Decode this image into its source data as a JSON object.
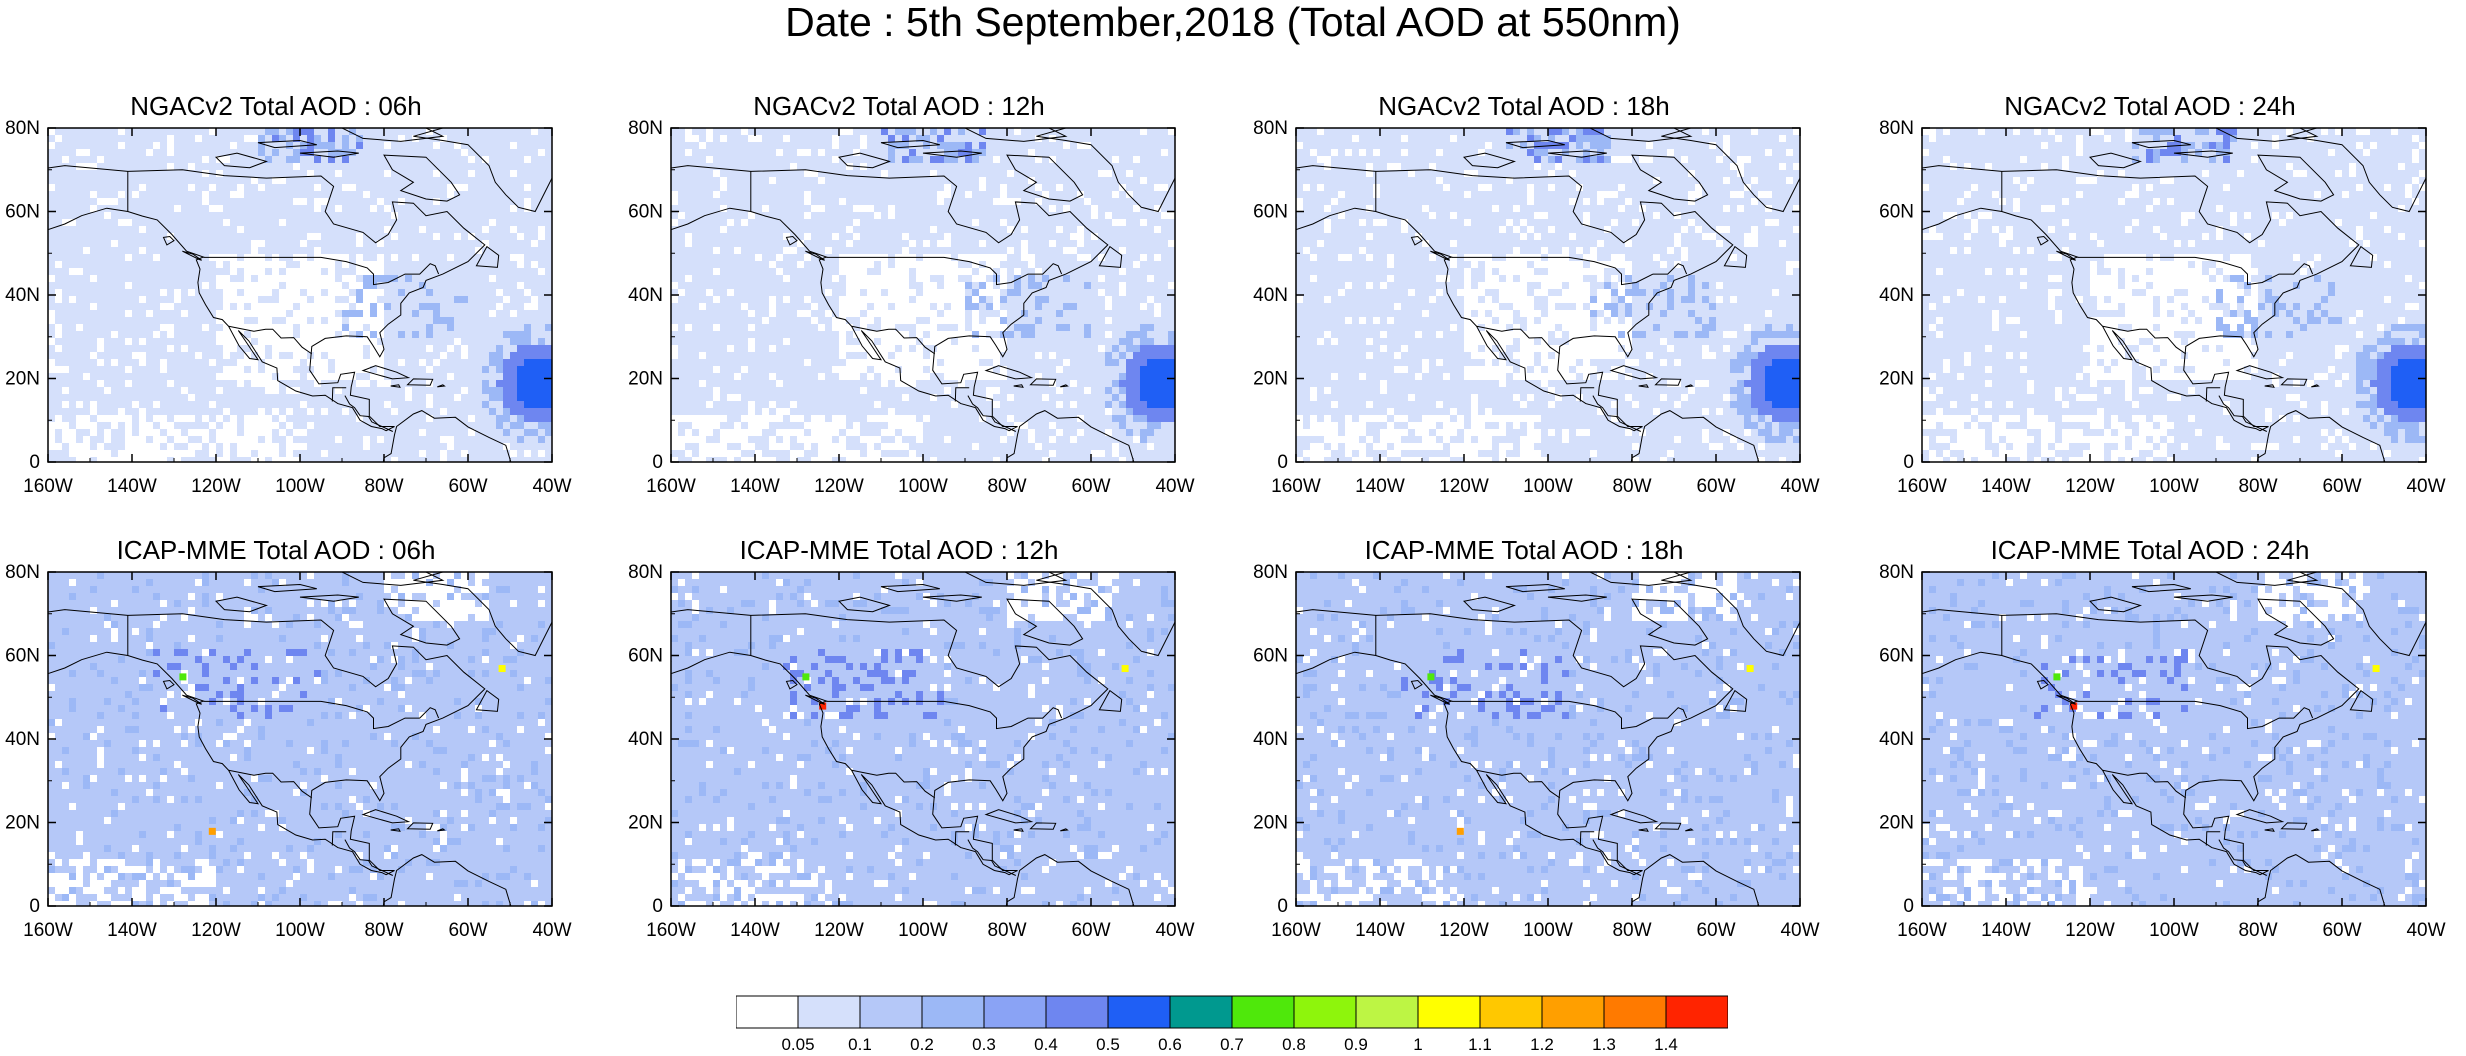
{
  "figure": {
    "title": "Date : 5th September,2018 (Total AOD at 550nm)"
  },
  "axes": {
    "lat_labels": [
      "80N",
      "60N",
      "40N",
      "20N",
      "0"
    ],
    "lon_labels": [
      "160W",
      "140W",
      "120W",
      "100W",
      "80W",
      "60W",
      "40W"
    ],
    "lon_range": [
      -160,
      -40
    ],
    "lat_range": [
      0,
      80
    ]
  },
  "panels": [
    {
      "title": "NGACv2 Total AOD : 06h",
      "model": "NGACv2",
      "hour": "06h"
    },
    {
      "title": "NGACv2 Total AOD : 12h",
      "model": "NGACv2",
      "hour": "12h"
    },
    {
      "title": "NGACv2 Total AOD : 18h",
      "model": "NGACv2",
      "hour": "18h"
    },
    {
      "title": "NGACv2 Total AOD : 24h",
      "model": "NGACv2",
      "hour": "24h"
    },
    {
      "title": "ICAP-MME Total AOD : 06h",
      "model": "ICAP-MME",
      "hour": "06h"
    },
    {
      "title": "ICAP-MME Total AOD : 12h",
      "model": "ICAP-MME",
      "hour": "12h"
    },
    {
      "title": "ICAP-MME Total AOD : 18h",
      "model": "ICAP-MME",
      "hour": "18h"
    },
    {
      "title": "ICAP-MME Total AOD : 24h",
      "model": "ICAP-MME",
      "hour": "24h"
    }
  ],
  "colorbar": {
    "colors": [
      "#ffffff",
      "#d5e0fb",
      "#b5c8f8",
      "#9cb8f6",
      "#8aa3f5",
      "#6e86f0",
      "#1f5ff5",
      "#00998f",
      "#4fe80b",
      "#8ef50c",
      "#bdf544",
      "#ffff00",
      "#ffc800",
      "#ff9f00",
      "#ff7a00",
      "#ff2400"
    ],
    "labels": [
      "0.05",
      "0.1",
      "0.2",
      "0.3",
      "0.4",
      "0.5",
      "0.6",
      "0.7",
      "0.8",
      "0.9",
      "1",
      "1.1",
      "1.2",
      "1.3",
      "1.4"
    ]
  },
  "field_colors": {
    "background_ngac": "#d5e0fb",
    "background_icap": "#b5c8f8",
    "clean_air": "#ffffff",
    "moderate": "#9cb8f6",
    "plume": "#1f5ff5",
    "plume_halo": "#6e86f0",
    "hotspot_green": "#4fe80b",
    "hotspot_yellow": "#ffff00",
    "hotspot_orange": "#ff9f00",
    "hotspot_red": "#ff2400"
  }
}
